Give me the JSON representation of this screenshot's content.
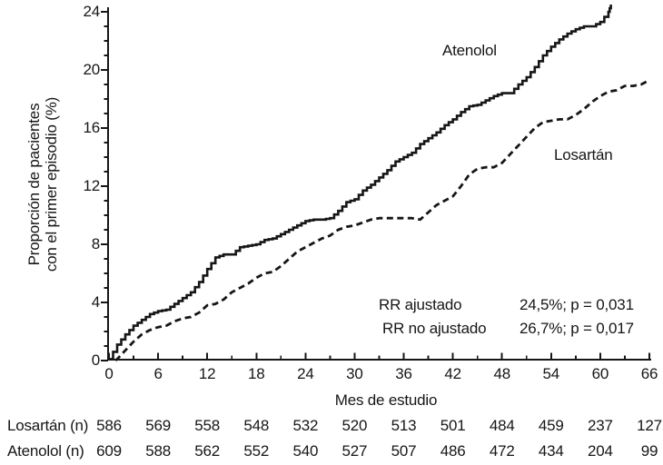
{
  "chart_data": {
    "type": "line",
    "title": "",
    "xlabel": "Mes de estudio",
    "ylabel_line1": "Proporción de pacientes",
    "ylabel_line2": "con el primer episodio (%)",
    "xlim": [
      0,
      66
    ],
    "ylim": [
      0,
      24
    ],
    "x_ticks": [
      0,
      6,
      12,
      18,
      24,
      30,
      36,
      42,
      48,
      54,
      60,
      66
    ],
    "y_ticks": [
      0,
      4,
      8,
      12,
      16,
      20,
      24
    ],
    "x_minor_step": 3,
    "y_minor_step": 1,
    "grid": false,
    "legend_position": "inline-labels",
    "colors": {
      "line": "#161616",
      "text": "#161616",
      "background": "#ffffff"
    },
    "series": [
      {
        "name": "Atenolol",
        "style": "solid",
        "step": true,
        "x": [
          0,
          1,
          2,
          3,
          4,
          5,
          6,
          7,
          8,
          9,
          10,
          11,
          12,
          13,
          14,
          15,
          16,
          17,
          18,
          19,
          20,
          21,
          22,
          23,
          24,
          25,
          26,
          27,
          28,
          29,
          30,
          31,
          32,
          33,
          34,
          35,
          36,
          37,
          38,
          39,
          40,
          41,
          42,
          43,
          44,
          45,
          46,
          47,
          48,
          49,
          50,
          51,
          52,
          53,
          54,
          55,
          56,
          57,
          58,
          59,
          60,
          61,
          61.3
        ],
        "y": [
          0.1,
          1.1,
          1.8,
          2.4,
          2.8,
          3.2,
          3.4,
          3.5,
          3.9,
          4.3,
          4.7,
          5.4,
          6.3,
          7.1,
          7.3,
          7.3,
          7.8,
          7.9,
          8.0,
          8.3,
          8.4,
          8.7,
          9.0,
          9.3,
          9.6,
          9.7,
          9.7,
          9.8,
          10.3,
          10.9,
          11.1,
          11.7,
          12.1,
          12.6,
          13.1,
          13.7,
          14.0,
          14.3,
          14.9,
          15.3,
          15.7,
          16.2,
          16.6,
          17.1,
          17.5,
          17.6,
          17.9,
          18.2,
          18.4,
          18.4,
          19.0,
          19.5,
          20.2,
          21.0,
          21.6,
          22.1,
          22.5,
          22.8,
          23.0,
          23.0,
          23.3,
          24.0,
          24.5
        ]
      },
      {
        "name": "Losartán",
        "style": "dashed",
        "step": false,
        "x": [
          0.8,
          1,
          2,
          3,
          4,
          5,
          6,
          7,
          8,
          9,
          10,
          11,
          12,
          13,
          14,
          15,
          16,
          17,
          18,
          19,
          20,
          21,
          22,
          23,
          24,
          25,
          26,
          27,
          28,
          29,
          30,
          31,
          32,
          33,
          34,
          35,
          36,
          37,
          38,
          39,
          40,
          41,
          42,
          43,
          44,
          45,
          46,
          47,
          48,
          49,
          50,
          51,
          52,
          53,
          54,
          55,
          56,
          57,
          58,
          59,
          60,
          61,
          62,
          63,
          64,
          65,
          66
        ],
        "y": [
          0.0,
          0.1,
          0.7,
          1.3,
          1.8,
          2.1,
          2.3,
          2.4,
          2.7,
          2.9,
          3.0,
          3.3,
          3.8,
          3.9,
          4.2,
          4.7,
          5.0,
          5.3,
          5.7,
          6.0,
          6.1,
          6.5,
          7.0,
          7.5,
          7.8,
          8.1,
          8.4,
          8.6,
          9.0,
          9.2,
          9.3,
          9.5,
          9.7,
          9.8,
          9.8,
          9.8,
          9.8,
          9.8,
          9.7,
          10.2,
          10.7,
          11.0,
          11.3,
          12.0,
          12.8,
          13.2,
          13.3,
          13.3,
          13.6,
          14.2,
          14.8,
          15.4,
          16.0,
          16.4,
          16.5,
          16.6,
          16.6,
          16.9,
          17.3,
          17.8,
          18.2,
          18.5,
          18.6,
          18.9,
          18.9,
          19.0,
          19.3
        ]
      }
    ],
    "annotations": [
      {
        "label": "RR ajustado",
        "value": "24,5%; p = 0,031"
      },
      {
        "label": "RR no ajustado",
        "value": "26,7%; p = 0,017"
      }
    ],
    "risk_table": {
      "rows": [
        {
          "label": "Losartán (n)",
          "values": [
            586,
            569,
            558,
            548,
            532,
            520,
            513,
            501,
            484,
            459,
            237,
            127
          ]
        },
        {
          "label": "Atenolol (n)",
          "values": [
            609,
            588,
            562,
            552,
            540,
            527,
            507,
            486,
            472,
            434,
            204,
            99
          ]
        }
      ]
    }
  }
}
